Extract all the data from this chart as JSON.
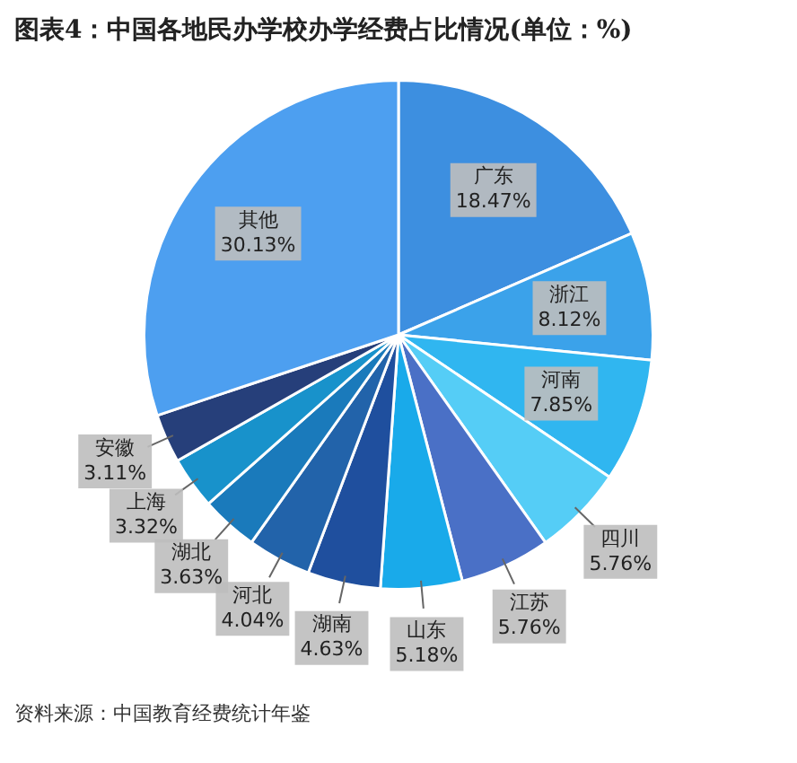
{
  "chart_data": {
    "type": "pie",
    "title": "图表4：中国各地民办学校办学经费占比情况(单位：%)",
    "categories": [
      "广东",
      "浙江",
      "河南",
      "四川",
      "江苏",
      "山东",
      "湖南",
      "河北",
      "湖北",
      "上海",
      "安徽",
      "其他"
    ],
    "values": [
      18.47,
      8.12,
      7.85,
      5.76,
      5.76,
      5.18,
      4.63,
      4.04,
      3.63,
      3.32,
      3.11,
      30.13
    ],
    "colors": [
      "#3d8fe0",
      "#3ba2ea",
      "#30b6f0",
      "#55cdf6",
      "#4a70c6",
      "#19aaea",
      "#1f4f9e",
      "#2263aa",
      "#1a7abb",
      "#1892cb",
      "#263f7a",
      "#4d9ff0"
    ],
    "value_labels": [
      "18.47%",
      "8.12%",
      "7.85%",
      "5.76%",
      "5.76%",
      "5.18%",
      "4.63%",
      "4.04%",
      "3.63%",
      "3.32%",
      "3.11%",
      "30.13%"
    ],
    "legend": false,
    "annotations": [
      "资料来源：中国教育经费统计年鉴"
    ]
  }
}
